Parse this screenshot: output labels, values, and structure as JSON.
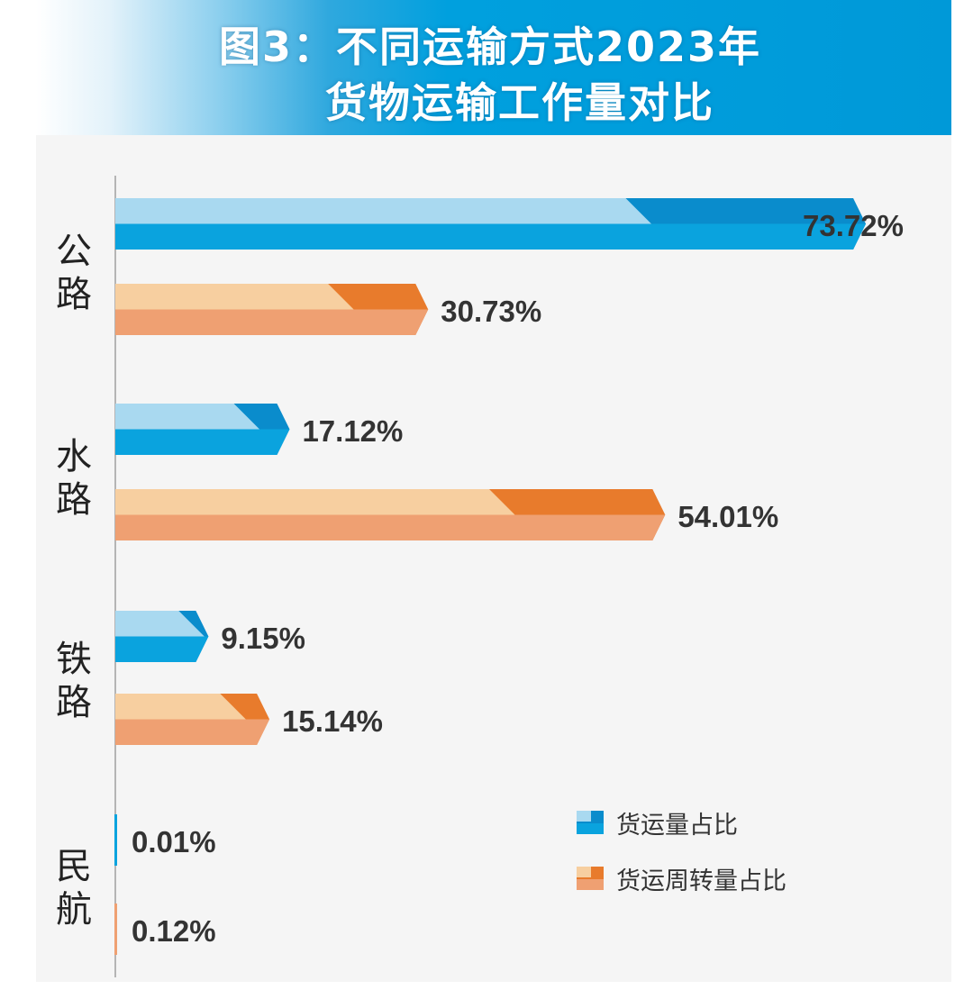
{
  "title": {
    "line1": "图3：不同运输方式2023年",
    "line2": "货物运输工作量对比"
  },
  "colors": {
    "blue_dark": "#0a8ccc",
    "blue_mid": "#0aa3de",
    "blue_light": "#a9d9f0",
    "orange_dark": "#e87b2c",
    "orange_mid": "#efa072",
    "orange_light": "#f7cfa0",
    "banner": "#00a0de"
  },
  "chart_data": {
    "type": "bar",
    "orientation": "horizontal",
    "categories": [
      "公路",
      "水路",
      "铁路",
      "民航"
    ],
    "series": [
      {
        "name": "货运量占比",
        "values": [
          73.72,
          17.12,
          9.15,
          0.01
        ]
      },
      {
        "name": "货运周转量占比",
        "values": [
          30.73,
          54.01,
          15.14,
          0.12
        ]
      }
    ],
    "value_labels": [
      [
        "73.72%",
        "17.12%",
        "9.15%",
        "0.01%"
      ],
      [
        "30.73%",
        "54.01%",
        "15.14%",
        "0.12%"
      ]
    ],
    "legend_position": "bottom-right"
  }
}
